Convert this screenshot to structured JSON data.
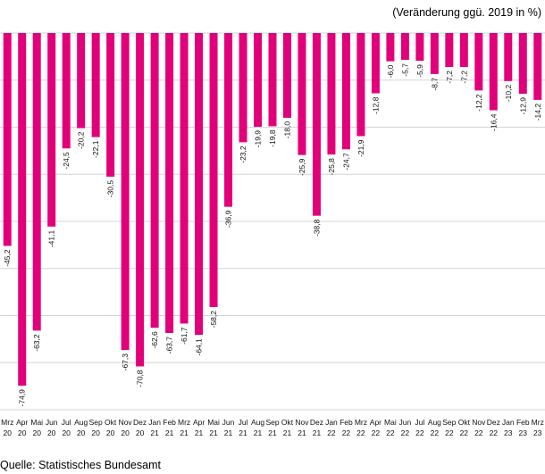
{
  "chart_data": {
    "type": "bar",
    "title": "",
    "note": "(Veränderung ggü. 2019 in %)",
    "source": "Quelle: Statistisches Bundesamt",
    "xlabel": "",
    "ylabel": "",
    "ylim": [
      -80,
      0
    ],
    "grid": true,
    "bar_color": "#e2007a",
    "categories": [
      {
        "month": "Mrz",
        "year": "20"
      },
      {
        "month": "Apr",
        "year": "20"
      },
      {
        "month": "Mai",
        "year": "20"
      },
      {
        "month": "Jun",
        "year": "20"
      },
      {
        "month": "Jul",
        "year": "20"
      },
      {
        "month": "Aug",
        "year": "20"
      },
      {
        "month": "Sep",
        "year": "20"
      },
      {
        "month": "Okt",
        "year": "20"
      },
      {
        "month": "Nov",
        "year": "20"
      },
      {
        "month": "Dez",
        "year": "20"
      },
      {
        "month": "Jan",
        "year": "21"
      },
      {
        "month": "Feb",
        "year": "21"
      },
      {
        "month": "Mrz",
        "year": "21"
      },
      {
        "month": "Apr",
        "year": "21"
      },
      {
        "month": "Mai",
        "year": "21"
      },
      {
        "month": "Jun",
        "year": "21"
      },
      {
        "month": "Jul",
        "year": "21"
      },
      {
        "month": "Aug",
        "year": "21"
      },
      {
        "month": "Sep",
        "year": "21"
      },
      {
        "month": "Okt",
        "year": "21"
      },
      {
        "month": "Nov",
        "year": "21"
      },
      {
        "month": "Dez",
        "year": "21"
      },
      {
        "month": "Jan",
        "year": "22"
      },
      {
        "month": "Feb",
        "year": "22"
      },
      {
        "month": "Mrz",
        "year": "22"
      },
      {
        "month": "Apr",
        "year": "22"
      },
      {
        "month": "Mai",
        "year": "22"
      },
      {
        "month": "Jun",
        "year": "22"
      },
      {
        "month": "Jul",
        "year": "22"
      },
      {
        "month": "Aug",
        "year": "22"
      },
      {
        "month": "Sep",
        "year": "22"
      },
      {
        "month": "Okt",
        "year": "22"
      },
      {
        "month": "Nov",
        "year": "22"
      },
      {
        "month": "Dez",
        "year": "22"
      },
      {
        "month": "Jan",
        "year": "23"
      },
      {
        "month": "Feb",
        "year": "23"
      },
      {
        "month": "Mrz",
        "year": "23"
      }
    ],
    "values": [
      -45.2,
      -74.9,
      -63.2,
      -41.1,
      -24.5,
      -20.2,
      -22.1,
      -30.5,
      -67.3,
      -70.8,
      -62.6,
      -63.7,
      -61.7,
      -64.1,
      -58.2,
      -36.9,
      -23.2,
      -19.9,
      -19.8,
      -18.0,
      -25.9,
      -38.8,
      -25.8,
      -24.7,
      -21.9,
      -12.8,
      -6.0,
      -5.7,
      -5.9,
      -8.7,
      -7.2,
      -7.2,
      -12.2,
      -16.4,
      -10.2,
      -12.9,
      -14.2
    ],
    "value_labels": [
      "-45,2",
      "-74,9",
      "-63,2",
      "-41,1",
      "-24,5",
      "-20,2",
      "-22,1",
      "-30,5",
      "-67,3",
      "-70,8",
      "-62,6",
      "-63,7",
      "-61,7",
      "-64,1",
      "-58,2",
      "-36,9",
      "-23,2",
      "-19,9",
      "-19,8",
      "-18,0",
      "-25,9",
      "-38,8",
      "-25,8",
      "-24,7",
      "-21,9",
      "-12,8",
      "-6,0",
      "-5,7",
      "-5,9",
      "-8,7",
      "-7,2",
      "-7,2",
      "-12,2",
      "-16,4",
      "-10,2",
      "-12,9",
      "-14,2"
    ]
  }
}
